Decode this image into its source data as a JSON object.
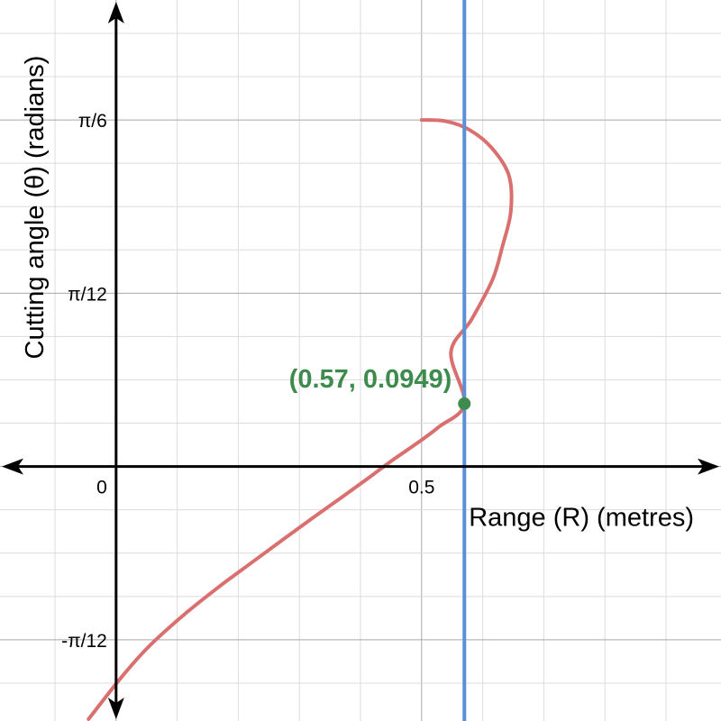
{
  "chart_data": {
    "type": "line",
    "xlabel": "Range (R) (metres)",
    "ylabel": "Cutting angle (θ) (radians)",
    "xlim": [
      -0.19,
      0.99
    ],
    "ylim": [
      -0.3845,
      0.7048
    ],
    "grid": true,
    "x_ticks": [
      {
        "value": 0,
        "label": "0"
      },
      {
        "value": 0.5,
        "label": "0.5"
      }
    ],
    "y_ticks": [
      {
        "value": 0.5236,
        "label": "π/6"
      },
      {
        "value": 0.2618,
        "label": "π/12"
      },
      {
        "value": -0.2618,
        "label": "-π/12"
      }
    ],
    "series": [
      {
        "color": "#d9706f",
        "points": [
          [
            0.5,
            0.5236
          ],
          [
            0.539,
            0.5218
          ],
          [
            0.578,
            0.5088
          ],
          [
            0.615,
            0.4811
          ],
          [
            0.643,
            0.4395
          ],
          [
            0.646,
            0.3853
          ],
          [
            0.632,
            0.3316
          ],
          [
            0.616,
            0.2822
          ],
          [
            0.582,
            0.2225
          ],
          [
            0.548,
            0.1722
          ],
          [
            0.57,
            0.0949
          ],
          [
            0.528,
            0.0596
          ],
          [
            0.492,
            0.0348
          ],
          [
            0.451,
            0.0087
          ],
          [
            0.413,
            -0.0174
          ],
          [
            0.372,
            -0.0448
          ],
          [
            0.326,
            -0.0749
          ],
          [
            0.275,
            -0.1091
          ],
          [
            0.221,
            -0.1458
          ],
          [
            0.167,
            -0.1827
          ],
          [
            0.111,
            -0.224
          ],
          [
            0.053,
            -0.2725
          ],
          [
            0.008,
            -0.3192
          ],
          [
            -0.045,
            -0.3816
          ]
        ]
      },
      {
        "color": "#5b8fd6",
        "x_vertical": 0.57
      }
    ],
    "highlight_point": {
      "x": 0.57,
      "y": 0.0949,
      "label": "(0.57, 0.0949)",
      "color": "#3d8c4e"
    }
  }
}
